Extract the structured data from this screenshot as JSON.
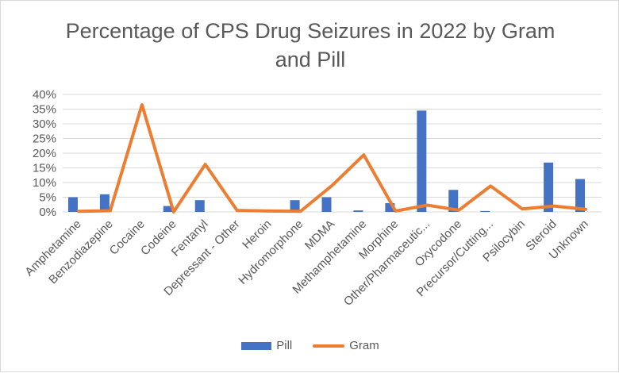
{
  "chart_data": {
    "type": "bar",
    "title": "Percentage of CPS Drug Seizures in 2022 by Gram and Pill",
    "title_lines": [
      "Percentage of CPS Drug Seizures in 2022 by Gram",
      "and Pill"
    ],
    "categories": [
      "Amphetamine",
      "Benzodiazepine",
      "Cocaine",
      "Codeine",
      "Fentanyl",
      "Depressant - Other",
      "Heroin",
      "Hydromorphone",
      "MDMA",
      "Methamphetamine",
      "Morphine",
      "Other/Pharmaceutic...",
      "Oxycodone",
      "Precursor/Cutting...",
      "Psilocybin",
      "Steroid",
      "Unknown"
    ],
    "series": [
      {
        "name": "Pill",
        "type": "bar",
        "color": "#4472C4",
        "values": [
          5.0,
          6.0,
          0.0,
          2.0,
          4.0,
          0.0,
          0.0,
          4.0,
          5.0,
          0.5,
          3.0,
          34.5,
          7.5,
          0.3,
          0.0,
          16.8,
          11.2
        ]
      },
      {
        "name": "Gram",
        "type": "line",
        "color": "#ED7D31",
        "values": [
          0.2,
          0.4,
          36.5,
          0.0,
          16.2,
          0.5,
          0.3,
          0.2,
          9.0,
          19.4,
          0.3,
          2.3,
          0.6,
          8.8,
          1.0,
          2.0,
          0.9
        ]
      }
    ],
    "yticks": [
      "0%",
      "5%",
      "10%",
      "15%",
      "20%",
      "25%",
      "30%",
      "35%",
      "40%"
    ],
    "ylim": [
      0,
      40
    ],
    "grid": true,
    "legend_position": "bottom"
  }
}
